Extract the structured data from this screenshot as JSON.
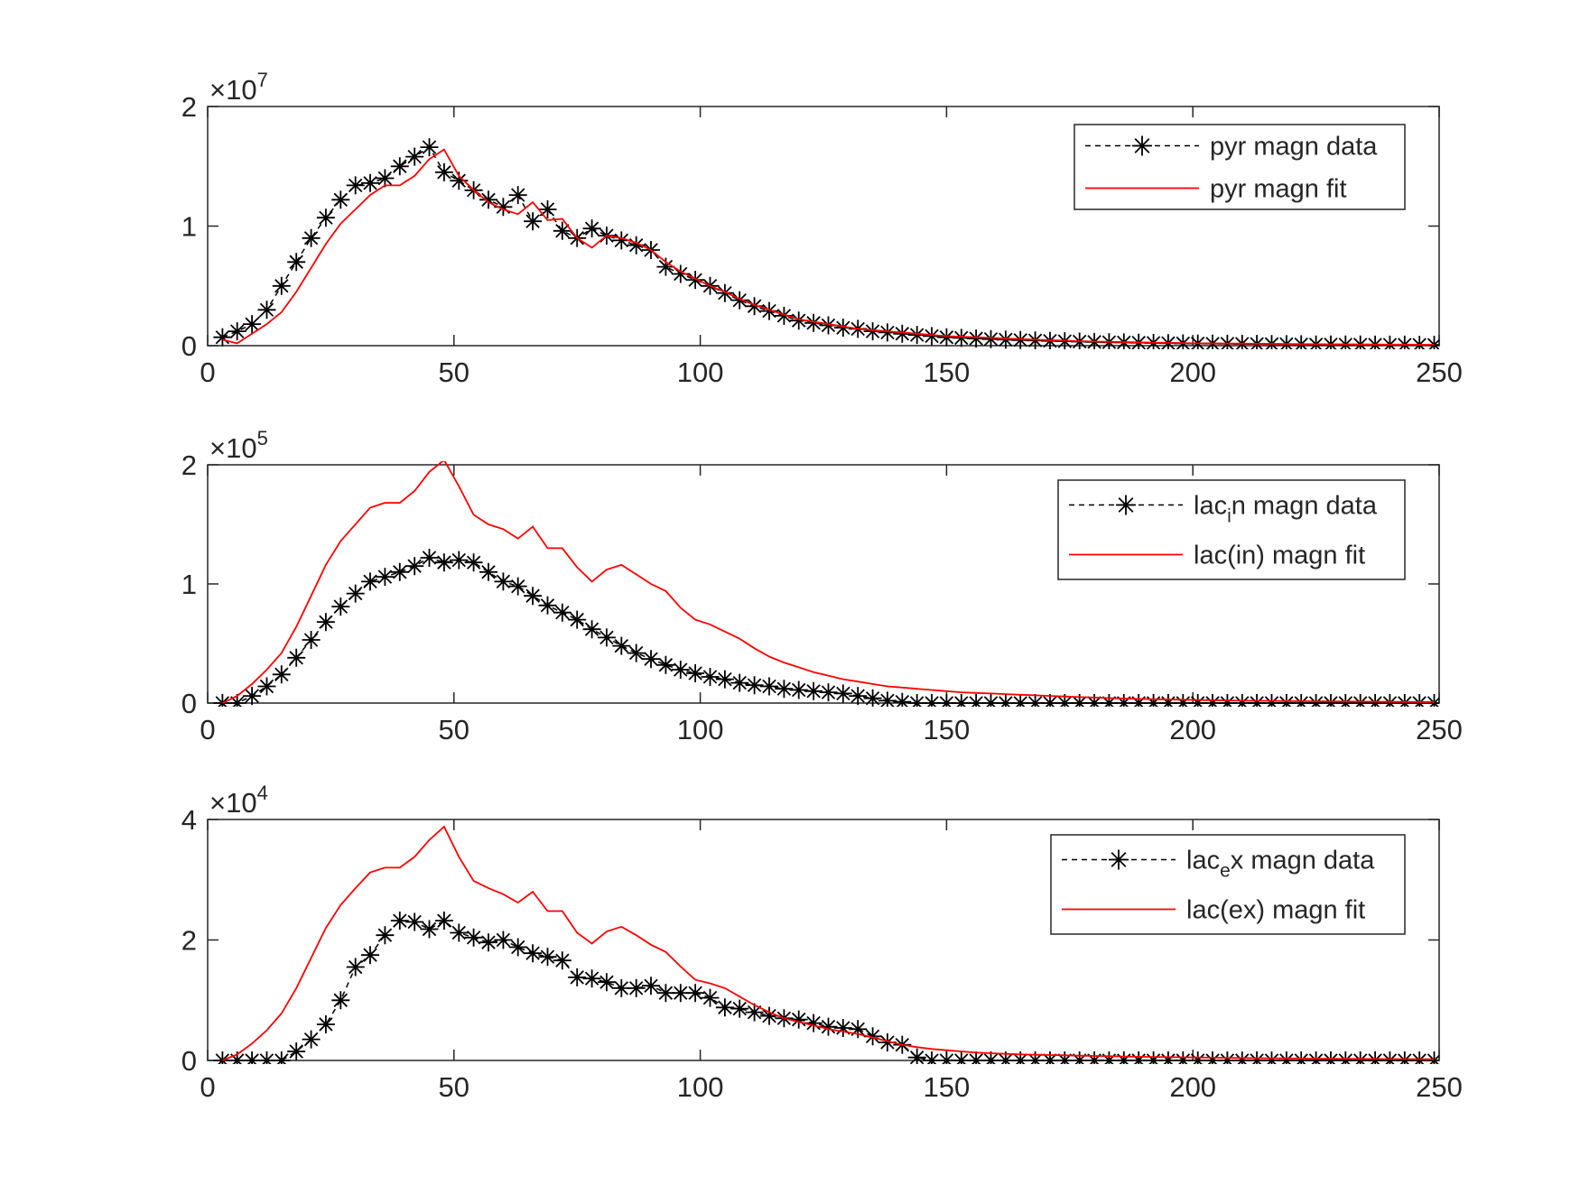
{
  "chart_data": [
    {
      "type": "line",
      "title": "",
      "xlabel": "",
      "ylabel": "",
      "xlim": [
        0,
        250
      ],
      "ylim": [
        0,
        2
      ],
      "y_exponent_base": "×10",
      "y_exponent_power": "7",
      "xticks": [
        "0",
        "50",
        "100",
        "150",
        "200",
        "250"
      ],
      "yticks": [
        "0",
        "1",
        "2"
      ],
      "grid": false,
      "legend_position": "top-right",
      "series": [
        {
          "name": "pyr magn data",
          "style": "dashed-star",
          "color": "#000000",
          "x": [
            3,
            6,
            9,
            12,
            15,
            18,
            21,
            24,
            27,
            30,
            33,
            36,
            39,
            42,
            45,
            48,
            51,
            54,
            57,
            60,
            63,
            66,
            69,
            72,
            75,
            78,
            81,
            84,
            87,
            90,
            93,
            96,
            99,
            102,
            105,
            108,
            111,
            114,
            117,
            120,
            123,
            126,
            129,
            132,
            135,
            138,
            141,
            144,
            147,
            150,
            153,
            156,
            159,
            162,
            165,
            168,
            171,
            174,
            177,
            180,
            183,
            186,
            189,
            192,
            195,
            198,
            201,
            204,
            207,
            210,
            213,
            216,
            219,
            222,
            225,
            228,
            231,
            234,
            237,
            240,
            243,
            246,
            249
          ],
          "y": [
            0.07,
            0.12,
            0.18,
            0.3,
            0.5,
            0.7,
            0.9,
            1.07,
            1.22,
            1.34,
            1.36,
            1.4,
            1.5,
            1.58,
            1.66,
            1.45,
            1.38,
            1.3,
            1.22,
            1.16,
            1.26,
            1.04,
            1.14,
            0.96,
            0.9,
            0.98,
            0.92,
            0.88,
            0.84,
            0.8,
            0.66,
            0.6,
            0.55,
            0.5,
            0.44,
            0.38,
            0.33,
            0.29,
            0.25,
            0.21,
            0.19,
            0.17,
            0.15,
            0.14,
            0.12,
            0.11,
            0.1,
            0.09,
            0.08,
            0.07,
            0.065,
            0.06,
            0.055,
            0.05,
            0.047,
            0.044,
            0.04,
            0.037,
            0.034,
            0.031,
            0.029,
            0.027,
            0.025,
            0.023,
            0.021,
            0.019,
            0.018,
            0.017,
            0.016,
            0.015,
            0.014,
            0.013,
            0.012,
            0.011,
            0.01,
            0.01,
            0.009,
            0.009,
            0.008,
            0.008,
            0.008,
            0.007,
            0.007
          ]
        },
        {
          "name": "pyr magn fit",
          "style": "solid",
          "color": "#ff0000",
          "x": [
            3,
            6,
            9,
            12,
            15,
            18,
            21,
            24,
            27,
            30,
            33,
            36,
            39,
            42,
            45,
            48,
            51,
            54,
            57,
            60,
            63,
            66,
            69,
            72,
            75,
            78,
            81,
            84,
            87,
            90,
            93,
            96,
            99,
            102,
            105,
            108,
            111,
            114,
            117,
            120,
            123,
            126,
            129,
            132,
            135,
            138,
            141,
            144,
            147,
            150,
            153,
            156,
            159,
            162,
            165,
            168,
            171,
            174,
            177,
            180,
            183,
            186,
            189,
            192,
            195,
            198,
            201,
            204,
            207,
            210,
            213,
            216,
            219,
            222,
            225,
            228,
            231,
            234,
            237,
            240,
            243,
            246,
            249
          ],
          "y": [
            0.05,
            0.02,
            0.1,
            0.18,
            0.28,
            0.45,
            0.65,
            0.85,
            1.02,
            1.14,
            1.26,
            1.34,
            1.34,
            1.42,
            1.56,
            1.64,
            1.42,
            1.3,
            1.2,
            1.14,
            1.1,
            1.2,
            1.05,
            1.06,
            0.9,
            0.82,
            0.92,
            0.9,
            0.86,
            0.8,
            0.7,
            0.62,
            0.56,
            0.5,
            0.45,
            0.39,
            0.34,
            0.3,
            0.26,
            0.22,
            0.2,
            0.18,
            0.16,
            0.14,
            0.13,
            0.12,
            0.11,
            0.1,
            0.09,
            0.08,
            0.075,
            0.07,
            0.065,
            0.06,
            0.055,
            0.05,
            0.046,
            0.042,
            0.038,
            0.035,
            0.032,
            0.03,
            0.028,
            0.026,
            0.024,
            0.022,
            0.02,
            0.019,
            0.018,
            0.017,
            0.016,
            0.015,
            0.014,
            0.013,
            0.012,
            0.011,
            0.011,
            0.01,
            0.01,
            0.009,
            0.009,
            0.008,
            0.008
          ]
        }
      ]
    },
    {
      "type": "line",
      "title": "",
      "xlabel": "",
      "ylabel": "",
      "xlim": [
        0,
        250
      ],
      "ylim": [
        0,
        2
      ],
      "y_exponent_base": "×10",
      "y_exponent_power": "5",
      "xticks": [
        "0",
        "50",
        "100",
        "150",
        "200",
        "250"
      ],
      "yticks": [
        "0",
        "1",
        "2"
      ],
      "grid": false,
      "legend_position": "top-right",
      "series": [
        {
          "name": "lac",
          "name_sub": "i",
          "name_rest": "n magn data",
          "style": "dashed-star",
          "color": "#000000",
          "x": [
            3,
            6,
            9,
            12,
            15,
            18,
            21,
            24,
            27,
            30,
            33,
            36,
            39,
            42,
            45,
            48,
            51,
            54,
            57,
            60,
            63,
            66,
            69,
            72,
            75,
            78,
            81,
            84,
            87,
            90,
            93,
            96,
            99,
            102,
            105,
            108,
            111,
            114,
            117,
            120,
            123,
            126,
            129,
            132,
            135,
            138,
            141,
            144,
            147,
            150,
            153,
            156,
            159,
            162,
            165,
            168,
            171,
            174,
            177,
            180,
            183,
            186,
            189,
            192,
            195,
            198,
            201,
            204,
            207,
            210,
            213,
            216,
            219,
            222,
            225,
            228,
            231,
            234,
            237,
            240,
            243,
            246,
            249
          ],
          "y": [
            0.0,
            0.0,
            0.06,
            0.14,
            0.24,
            0.38,
            0.53,
            0.68,
            0.81,
            0.92,
            1.02,
            1.06,
            1.1,
            1.15,
            1.22,
            1.18,
            1.2,
            1.18,
            1.1,
            1.02,
            0.98,
            0.9,
            0.82,
            0.76,
            0.7,
            0.62,
            0.55,
            0.48,
            0.42,
            0.37,
            0.32,
            0.28,
            0.25,
            0.22,
            0.2,
            0.17,
            0.15,
            0.14,
            0.12,
            0.11,
            0.1,
            0.09,
            0.08,
            0.06,
            0.04,
            0.02,
            0.01,
            0.0,
            0.0,
            0.0,
            0.0,
            0.0,
            0.0,
            0.0,
            0.0,
            0.0,
            0.0,
            0.0,
            0.0,
            0.0,
            0.0,
            0.0,
            0.0,
            0.0,
            0.0,
            0.0,
            0.0,
            0.0,
            0.0,
            0.0,
            0.0,
            0.0,
            0.0,
            0.0,
            0.0,
            0.0,
            0.0,
            0.0,
            0.0,
            0.0,
            0.0,
            0.0,
            0.0
          ]
        },
        {
          "name": "lac(in) magn fit",
          "style": "solid",
          "color": "#ff0000",
          "x": [
            3,
            6,
            9,
            12,
            15,
            18,
            21,
            24,
            27,
            30,
            33,
            36,
            39,
            42,
            45,
            48,
            51,
            54,
            57,
            60,
            63,
            66,
            69,
            72,
            75,
            78,
            81,
            84,
            87,
            90,
            93,
            96,
            99,
            102,
            105,
            108,
            111,
            114,
            117,
            120,
            123,
            126,
            129,
            132,
            135,
            138,
            141,
            144,
            147,
            150,
            153,
            156,
            159,
            162,
            165,
            168,
            171,
            174,
            177,
            180,
            183,
            186,
            189,
            192,
            195,
            198,
            201,
            204,
            207,
            210,
            213,
            216,
            219,
            222,
            225,
            228,
            231,
            234,
            237,
            240,
            243,
            246,
            249
          ],
          "y": [
            0.0,
            0.06,
            0.16,
            0.28,
            0.42,
            0.64,
            0.9,
            1.16,
            1.36,
            1.5,
            1.64,
            1.68,
            1.68,
            1.78,
            1.94,
            2.04,
            1.82,
            1.58,
            1.5,
            1.46,
            1.38,
            1.48,
            1.3,
            1.3,
            1.14,
            1.02,
            1.12,
            1.16,
            1.08,
            1.0,
            0.94,
            0.8,
            0.7,
            0.66,
            0.6,
            0.54,
            0.46,
            0.39,
            0.34,
            0.3,
            0.26,
            0.23,
            0.2,
            0.18,
            0.16,
            0.14,
            0.13,
            0.12,
            0.11,
            0.1,
            0.09,
            0.085,
            0.08,
            0.075,
            0.07,
            0.065,
            0.06,
            0.055,
            0.05,
            0.046,
            0.042,
            0.038,
            0.035,
            0.032,
            0.03,
            0.028,
            0.026,
            0.024,
            0.022,
            0.02,
            0.019,
            0.018,
            0.017,
            0.016,
            0.015,
            0.014,
            0.013,
            0.012,
            0.011,
            0.01,
            0.01,
            0.009,
            0.009
          ]
        }
      ]
    },
    {
      "type": "line",
      "title": "",
      "xlabel": "",
      "ylabel": "",
      "xlim": [
        0,
        250
      ],
      "ylim": [
        0,
        4
      ],
      "y_exponent_base": "×10",
      "y_exponent_power": "4",
      "xticks": [
        "0",
        "50",
        "100",
        "150",
        "200",
        "250"
      ],
      "yticks": [
        "0",
        "2",
        "4"
      ],
      "grid": false,
      "legend_position": "top-right",
      "series": [
        {
          "name": "lac",
          "name_sub": "e",
          "name_rest": "x magn data",
          "style": "dashed-star",
          "color": "#000000",
          "x": [
            3,
            6,
            9,
            12,
            15,
            18,
            21,
            24,
            27,
            30,
            33,
            36,
            39,
            42,
            45,
            48,
            51,
            54,
            57,
            60,
            63,
            66,
            69,
            72,
            75,
            78,
            81,
            84,
            87,
            90,
            93,
            96,
            99,
            102,
            105,
            108,
            111,
            114,
            117,
            120,
            123,
            126,
            129,
            132,
            135,
            138,
            141,
            144,
            147,
            150,
            153,
            156,
            159,
            162,
            165,
            168,
            171,
            174,
            177,
            180,
            183,
            186,
            189,
            192,
            195,
            198,
            201,
            204,
            207,
            210,
            213,
            216,
            219,
            222,
            225,
            228,
            231,
            234,
            237,
            240,
            243,
            246,
            249
          ],
          "y": [
            0.0,
            0.0,
            0.0,
            0.0,
            0.0,
            0.15,
            0.35,
            0.6,
            1.0,
            1.55,
            1.75,
            2.08,
            2.32,
            2.3,
            2.18,
            2.32,
            2.12,
            2.04,
            1.96,
            2.0,
            1.88,
            1.78,
            1.72,
            1.66,
            1.38,
            1.36,
            1.3,
            1.2,
            1.2,
            1.24,
            1.12,
            1.12,
            1.12,
            1.04,
            0.88,
            0.86,
            0.8,
            0.74,
            0.7,
            0.68,
            0.62,
            0.56,
            0.54,
            0.52,
            0.4,
            0.3,
            0.26,
            0.05,
            0.0,
            0.0,
            0.0,
            0.0,
            0.0,
            0.0,
            0.0,
            0.0,
            0.0,
            0.0,
            0.0,
            0.0,
            0.0,
            0.0,
            0.0,
            0.0,
            0.0,
            0.0,
            0.0,
            0.0,
            0.0,
            0.0,
            0.0,
            0.0,
            0.0,
            0.0,
            0.0,
            0.0,
            0.0,
            0.0,
            0.0,
            0.0,
            0.0,
            0.0,
            0.0
          ]
        },
        {
          "name": "lac(ex) magn fit",
          "style": "solid",
          "color": "#ff0000",
          "x": [
            3,
            6,
            9,
            12,
            15,
            18,
            21,
            24,
            27,
            30,
            33,
            36,
            39,
            42,
            45,
            48,
            51,
            54,
            57,
            60,
            63,
            66,
            69,
            72,
            75,
            78,
            81,
            84,
            87,
            90,
            93,
            96,
            99,
            102,
            105,
            108,
            111,
            114,
            117,
            120,
            123,
            126,
            129,
            132,
            135,
            138,
            141,
            144,
            147,
            150,
            153,
            156,
            159,
            162,
            165,
            168,
            171,
            174,
            177,
            180,
            183,
            186,
            189,
            192,
            195,
            198,
            201,
            204,
            207,
            210,
            213,
            216,
            219,
            222,
            225,
            228,
            231,
            234,
            237,
            240,
            243,
            246,
            249
          ],
          "y": [
            0.0,
            0.1,
            0.28,
            0.5,
            0.78,
            1.2,
            1.7,
            2.2,
            2.58,
            2.86,
            3.12,
            3.2,
            3.2,
            3.38,
            3.66,
            3.88,
            3.38,
            2.98,
            2.86,
            2.76,
            2.62,
            2.8,
            2.48,
            2.48,
            2.12,
            1.94,
            2.14,
            2.22,
            2.08,
            1.92,
            1.8,
            1.56,
            1.34,
            1.28,
            1.2,
            1.06,
            0.92,
            0.8,
            0.7,
            0.64,
            0.58,
            0.52,
            0.48,
            0.44,
            0.38,
            0.32,
            0.26,
            0.22,
            0.19,
            0.17,
            0.15,
            0.13,
            0.12,
            0.11,
            0.1,
            0.095,
            0.09,
            0.085,
            0.08,
            0.075,
            0.07,
            0.066,
            0.062,
            0.058,
            0.055,
            0.052,
            0.049,
            0.046,
            0.043,
            0.04,
            0.038,
            0.036,
            0.034,
            0.032,
            0.03,
            0.028,
            0.026,
            0.025,
            0.024,
            0.023,
            0.022,
            0.021,
            0.02
          ]
        }
      ]
    }
  ]
}
